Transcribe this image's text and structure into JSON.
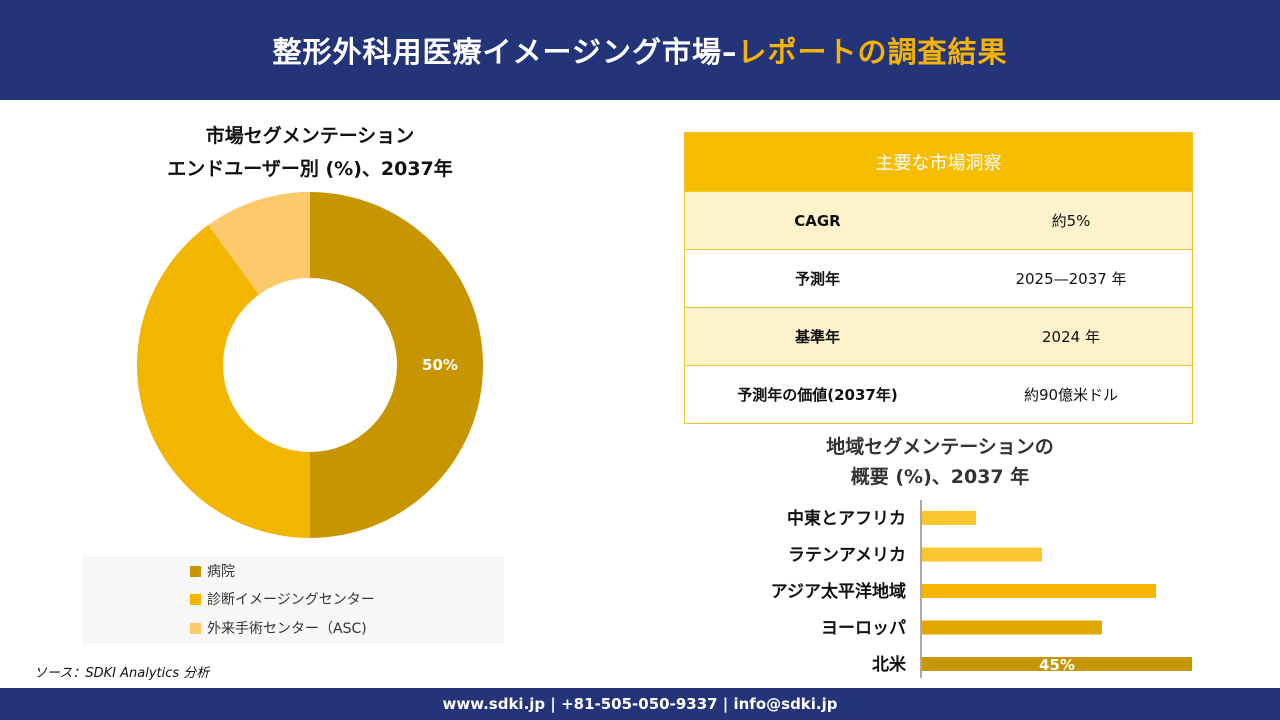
{
  "header": {
    "title_main": "整形外科用医療イメージング市場",
    "title_dash": "–",
    "title_accent": "レポートの調査結果"
  },
  "colors": {
    "navy": "#243478",
    "accent": "#f6b400",
    "hospital": "#c69500",
    "diagnostic": "#f2b500",
    "asc": "#fdc96a"
  },
  "pie_title": {
    "line1": "市場セグメンテーション",
    "line2": "エンドユーザー別 (%)、2037年"
  },
  "legend": [
    {
      "label": "病院",
      "color": "#c69500"
    },
    {
      "label": "診断イメージングセンター",
      "color": "#f2b500"
    },
    {
      "label": "外来手術センター（ASC)",
      "color": "#fdc96a"
    }
  ],
  "source": "ソース：SDKI Analytics 分析",
  "insights": {
    "header": "主要な市場洞察",
    "rows": [
      {
        "key": "CAGR",
        "value": "約5%"
      },
      {
        "key": "予測年",
        "value": "2025—2037 年"
      },
      {
        "key": "基準年",
        "value": "2024 年"
      },
      {
        "key": "予測年の価値(2037年)",
        "value": "約90億米ドル"
      }
    ]
  },
  "bar_title": {
    "line1": "地域セグメンテーションの",
    "line2": "概要 (%)、2037 年"
  },
  "footer": "www.sdki.jp | +81-505-050-9337 | info@sdki.jp",
  "chart_data": [
    {
      "type": "pie",
      "donut": true,
      "title": "市場セグメンテーション エンドユーザー別 (%)、2037年",
      "categories": [
        "病院",
        "診断イメージングセンター",
        "外来手術センター（ASC)"
      ],
      "values": [
        50,
        40,
        10
      ],
      "colors": [
        "#c69500",
        "#f2b500",
        "#fdc96a"
      ],
      "data_labels": [
        "50%",
        "",
        ""
      ]
    },
    {
      "type": "bar",
      "orientation": "horizontal",
      "title": "地域セグメンテーションの 概要 (%)、2037 年",
      "categories": [
        "中東とアフリカ",
        "ラテンアメリカ",
        "アジア太平洋地域",
        "ヨーロッパ",
        "北米"
      ],
      "values": [
        9,
        20,
        39,
        30,
        45
      ],
      "colors": [
        "#fcc72e",
        "#fcc72e",
        "#f6b400",
        "#e2a800",
        "#c69500"
      ],
      "data_labels": [
        "",
        "",
        "",
        "",
        "45%"
      ],
      "xlim": [
        0,
        45
      ]
    }
  ]
}
